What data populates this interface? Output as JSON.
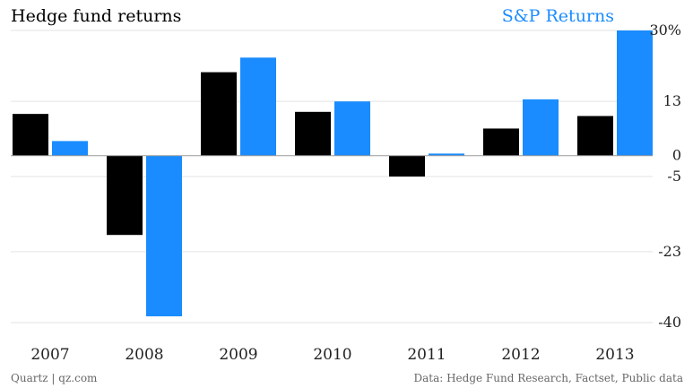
{
  "chart_data": {
    "type": "bar",
    "categories": [
      "2007",
      "2008",
      "2009",
      "2010",
      "2011",
      "2012",
      "2013"
    ],
    "series": [
      {
        "name": "Hedge fund returns",
        "color": "#000000",
        "values": [
          10,
          -19,
          20,
          10.5,
          -5,
          6.5,
          9.5
        ]
      },
      {
        "name": "S&P Returns",
        "color": "#1a8cff",
        "values": [
          3.5,
          -38.5,
          23.5,
          13,
          0.5,
          13.5,
          30
        ]
      }
    ],
    "y_ticks": [
      {
        "value": 30,
        "label": "30%"
      },
      {
        "value": 13,
        "label": "13"
      },
      {
        "value": 0,
        "label": "0"
      },
      {
        "value": -5,
        "label": "-5"
      },
      {
        "value": -23,
        "label": "-23"
      },
      {
        "value": -40,
        "label": "-40"
      }
    ],
    "ylim": [
      -41,
      31
    ],
    "grid": true,
    "legend_placement": "top"
  },
  "footer": {
    "source_left": "Quartz | qz.com",
    "source_right": "Data: Hedge Fund Research, Factset, Public data"
  }
}
